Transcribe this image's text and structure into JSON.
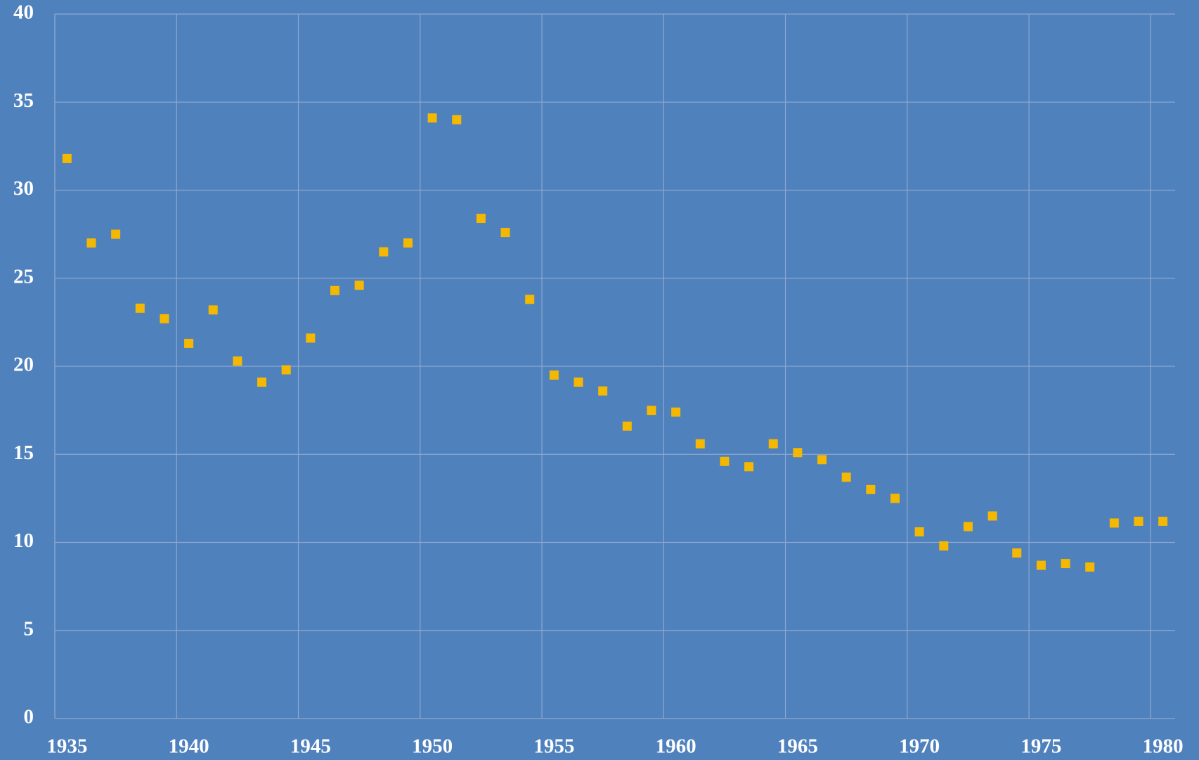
{
  "chart_data": {
    "type": "scatter",
    "categories": [
      "1935",
      null,
      null,
      null,
      null,
      "1940",
      null,
      null,
      null,
      null,
      "1945",
      null,
      null,
      null,
      null,
      "1950",
      null,
      null,
      null,
      null,
      "1955",
      null,
      null,
      null,
      null,
      "1960",
      null,
      null,
      null,
      null,
      "1965",
      null,
      null,
      null,
      null,
      "1970",
      null,
      null,
      null,
      null,
      "1975",
      null,
      null,
      null,
      null,
      "1980"
    ],
    "values": [
      31.8,
      27.0,
      27.5,
      23.3,
      22.7,
      21.3,
      23.2,
      20.3,
      19.1,
      19.8,
      21.6,
      24.3,
      24.6,
      26.5,
      27.0,
      34.1,
      34.0,
      28.4,
      27.6,
      23.8,
      19.5,
      19.1,
      18.6,
      16.6,
      17.5,
      17.4,
      15.6,
      14.6,
      14.3,
      15.6,
      15.1,
      14.7,
      13.7,
      13.0,
      12.5,
      10.6,
      9.8,
      10.9,
      11.5,
      9.4,
      8.7,
      8.8,
      8.6,
      11.1,
      11.2,
      11.2
    ],
    "color": "#f5b800",
    "ylim": [
      0,
      40
    ],
    "yticks": [
      0,
      5,
      10,
      15,
      20,
      25,
      30,
      35,
      40
    ],
    "grid": true
  }
}
